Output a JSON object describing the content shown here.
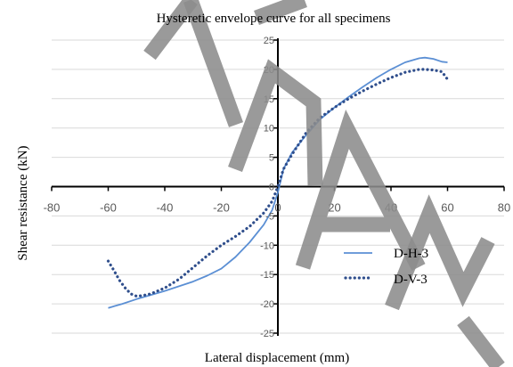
{
  "chart_data": {
    "type": "line",
    "title": "Hysteretic envelope curve for all specimens",
    "xlabel": "Lateral displacement (mm)",
    "ylabel": "Shear resistance (kN)",
    "xlim": [
      -80,
      80
    ],
    "ylim": [
      -25,
      25
    ],
    "xticks": [
      -80,
      -60,
      -40,
      -20,
      0,
      20,
      40,
      60,
      80
    ],
    "yticks": [
      -25,
      -20,
      -15,
      -10,
      -5,
      0,
      5,
      10,
      15,
      20,
      25
    ],
    "grid": true,
    "legend_position": "lower-right",
    "series": [
      {
        "name": "D-H-3",
        "color": "#5b8fd4",
        "style": "solid",
        "x": [
          -60,
          -55,
          -50,
          -45,
          -40,
          -35,
          -30,
          -25,
          -20,
          -15,
          -10,
          -5,
          -2,
          0,
          2,
          5,
          10,
          15,
          20,
          25,
          30,
          35,
          40,
          45,
          50,
          52,
          55,
          58,
          60
        ],
        "y": [
          -20.7,
          -20.0,
          -19.2,
          -18.5,
          -17.8,
          -17.0,
          -16.2,
          -15.2,
          -14.0,
          -12.0,
          -9.5,
          -6.5,
          -4.0,
          -1.0,
          3.0,
          5.8,
          8.8,
          11.5,
          13.5,
          15.3,
          17.0,
          18.6,
          20.0,
          21.2,
          21.9,
          22.0,
          21.8,
          21.3,
          21.2
        ]
      },
      {
        "name": "D-V-3",
        "color": "#2f4e8c",
        "style": "dotted",
        "x": [
          -60,
          -58,
          -56,
          -54,
          -52,
          -50,
          -48,
          -45,
          -40,
          -35,
          -30,
          -25,
          -20,
          -15,
          -10,
          -5,
          -2,
          0,
          2,
          5,
          10,
          15,
          20,
          25,
          30,
          35,
          40,
          45,
          50,
          52,
          55,
          58,
          60
        ],
        "y": [
          -12.7,
          -14.3,
          -16.0,
          -17.3,
          -18.3,
          -18.7,
          -18.6,
          -18.3,
          -17.3,
          -15.8,
          -13.8,
          -11.8,
          -10.0,
          -8.5,
          -6.8,
          -4.5,
          -2.5,
          0.0,
          3.0,
          5.5,
          9.2,
          11.8,
          13.5,
          15.0,
          16.3,
          17.5,
          18.6,
          19.5,
          20.0,
          20.0,
          19.9,
          19.6,
          18.3
        ]
      }
    ],
    "watermark": {
      "text": "MANU",
      "color": "#8c8c8c"
    }
  }
}
